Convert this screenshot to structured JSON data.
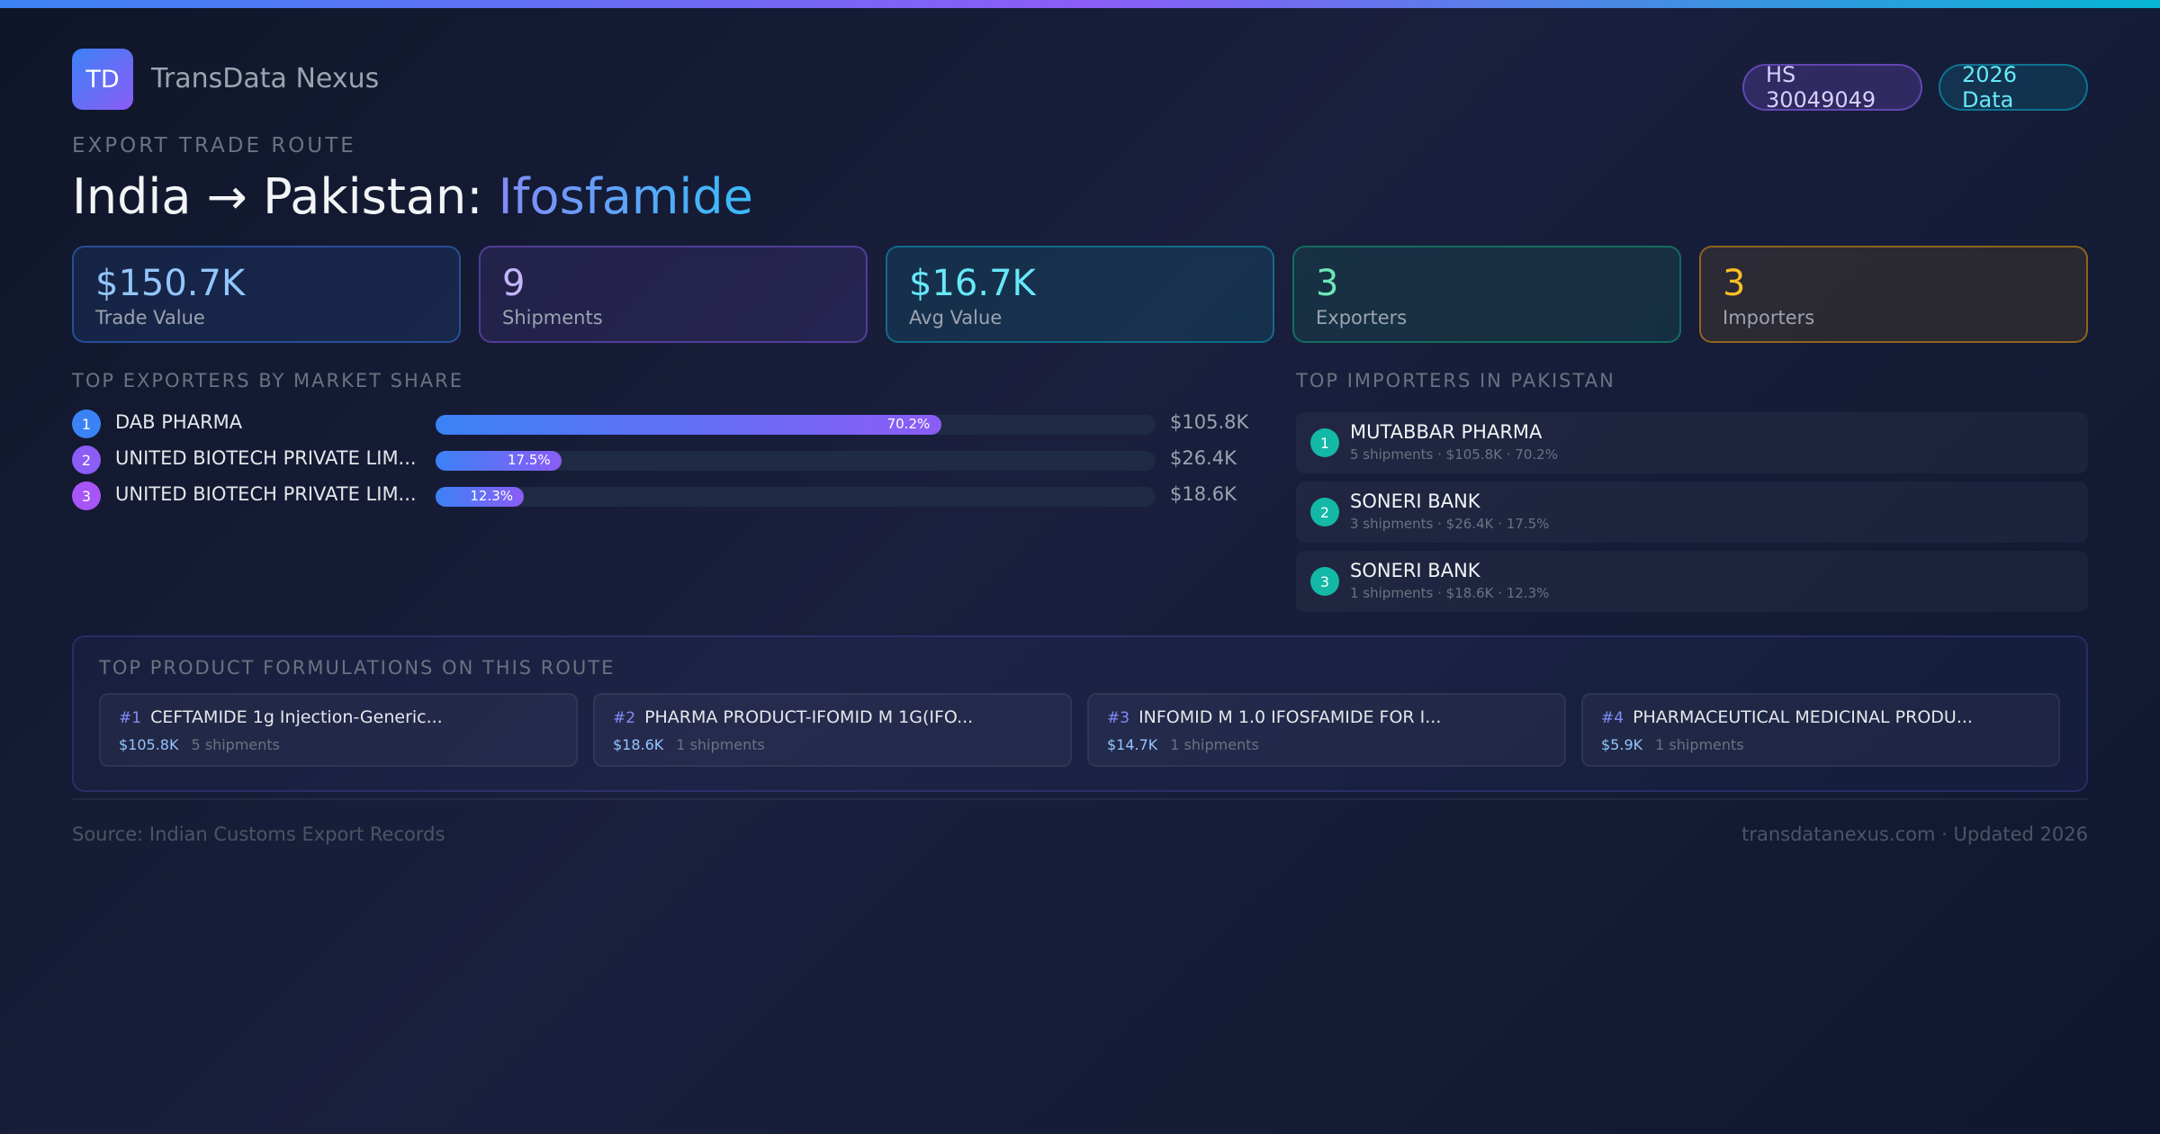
{
  "brand": {
    "logo": "TD",
    "name": "TransData Nexus"
  },
  "badges": {
    "hs": "HS 30049049",
    "year": "2026 Data"
  },
  "route": {
    "eyebrow": "EXPORT TRADE ROUTE",
    "title": "India → Pakistan: ",
    "product": "Ifosfamide"
  },
  "stats": [
    {
      "value": "$150.7K",
      "label": "Trade Value"
    },
    {
      "value": "9",
      "label": "Shipments"
    },
    {
      "value": "$16.7K",
      "label": "Avg Value"
    },
    {
      "value": "3",
      "label": "Exporters"
    },
    {
      "value": "3",
      "label": "Importers"
    }
  ],
  "exporters": {
    "title": "TOP EXPORTERS BY MARKET SHARE",
    "items": [
      {
        "rank": "1",
        "name": "DAB PHARMA",
        "share": 70.2,
        "share_label": "70.2%",
        "value": "$105.8K"
      },
      {
        "rank": "2",
        "name": "UNITED BIOTECH PRIVATE LIM...",
        "share": 17.5,
        "share_label": "17.5%",
        "value": "$26.4K"
      },
      {
        "rank": "3",
        "name": "UNITED BIOTECH PRIVATE LIM...",
        "share": 12.3,
        "share_label": "12.3%",
        "value": "$18.6K"
      }
    ]
  },
  "importers": {
    "title": "TOP IMPORTERS IN PAKISTAN",
    "items": [
      {
        "rank": "1",
        "name": "MUTABBAR PHARMA",
        "meta": "5 shipments · $105.8K · 70.2%"
      },
      {
        "rank": "2",
        "name": "SONERI BANK",
        "meta": "3 shipments · $26.4K · 17.5%"
      },
      {
        "rank": "3",
        "name": "SONERI BANK",
        "meta": "1 shipments · $18.6K · 12.3%"
      }
    ]
  },
  "products": {
    "title": "TOP PRODUCT FORMULATIONS ON THIS ROUTE",
    "items": [
      {
        "num": "#1",
        "name": "CEFTAMIDE 1g Injection-Generic...",
        "value": "$105.8K",
        "shipments": "5 shipments"
      },
      {
        "num": "#2",
        "name": "PHARMA PRODUCT-IFOMID M 1G(IFO...",
        "value": "$18.6K",
        "shipments": "1 shipments"
      },
      {
        "num": "#3",
        "name": "INFOMID M 1.0 IFOSFAMIDE FOR I...",
        "value": "$14.7K",
        "shipments": "1 shipments"
      },
      {
        "num": "#4",
        "name": "PHARMACEUTICAL MEDICINAL PRODU...",
        "value": "$5.9K",
        "shipments": "1 shipments"
      }
    ]
  },
  "footer": {
    "source": "Source: Indian Customs Export Records",
    "site": "transdatanexus.com · Updated 2026"
  }
}
